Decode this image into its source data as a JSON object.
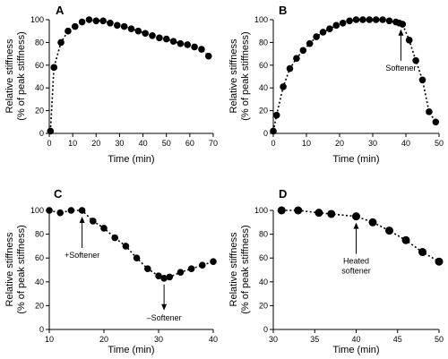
{
  "chart_data": [
    {
      "type": "scatter",
      "panel_label": "A",
      "xlabel": "Time (min)",
      "ylabel_line1": "Relative stiffness",
      "ylabel_line2": "(% of peak stiffness)",
      "xlim": [
        0,
        70
      ],
      "ylim": [
        0,
        100
      ],
      "xticks": [
        0,
        10,
        20,
        30,
        40,
        50,
        60,
        70
      ],
      "yticks": [
        0,
        20,
        40,
        60,
        80,
        100
      ],
      "grid": false,
      "series": [
        {
          "x": [
            0.5,
            2,
            5,
            8,
            11,
            14,
            17,
            20,
            23,
            26,
            29,
            32,
            35,
            38,
            41,
            44,
            47,
            50,
            53,
            56,
            59,
            62,
            65,
            68
          ],
          "y": [
            2,
            58,
            80,
            90,
            94,
            98,
            100,
            99,
            99,
            97,
            95,
            94,
            92,
            90,
            88,
            86,
            84,
            83,
            81,
            79,
            78,
            76,
            74,
            68
          ]
        }
      ],
      "annotations": []
    },
    {
      "type": "scatter",
      "panel_label": "B",
      "xlabel": "Time (min)",
      "ylabel_line1": "Relative stiffness",
      "ylabel_line2": "(% of peak stiffness)",
      "xlim": [
        0,
        50
      ],
      "ylim": [
        0,
        100
      ],
      "xticks": [
        0,
        10,
        20,
        30,
        40,
        50
      ],
      "yticks": [
        0,
        20,
        40,
        60,
        80,
        100
      ],
      "grid": false,
      "series": [
        {
          "x": [
            0,
            1,
            3,
            5,
            7,
            9,
            11,
            13,
            15,
            17,
            19,
            21,
            23,
            25,
            27,
            29,
            31,
            33,
            35,
            37,
            38,
            39,
            41,
            43,
            45,
            47,
            49
          ],
          "y": [
            2,
            16,
            41,
            57,
            66,
            73,
            79,
            85,
            89,
            92,
            95,
            97,
            99,
            100,
            100,
            100,
            100,
            100,
            99,
            98,
            97,
            96,
            82,
            64,
            47,
            19,
            10
          ]
        }
      ],
      "annotations": [
        {
          "text": "Softener",
          "x": 38.5,
          "y": 97,
          "direction": "up"
        }
      ]
    },
    {
      "type": "scatter",
      "panel_label": "C",
      "xlabel": "Time (min)",
      "ylabel_line1": "Relative stiffness",
      "ylabel_line2": "(% of peak stiffness)",
      "xlim": [
        10,
        40
      ],
      "ylim": [
        0,
        100
      ],
      "xticks": [
        10,
        20,
        30,
        40
      ],
      "yticks": [
        0,
        20,
        40,
        60,
        80,
        100
      ],
      "grid": false,
      "series": [
        {
          "x": [
            10,
            12,
            14,
            16,
            18,
            20,
            22,
            24,
            26,
            28,
            30,
            31,
            32,
            34,
            36,
            38,
            40
          ],
          "y": [
            100,
            98,
            100,
            100,
            91,
            85,
            77,
            70,
            60,
            51,
            45,
            43,
            44,
            48,
            51,
            54,
            57
          ]
        }
      ],
      "annotations": [
        {
          "text": "+Softener",
          "x": 16,
          "y": 100,
          "direction": "up"
        },
        {
          "text": "–Softener",
          "x": 31,
          "y": 43,
          "direction": "down"
        }
      ]
    },
    {
      "type": "scatter",
      "panel_label": "D",
      "xlabel": "Time (min)",
      "ylabel_line1": "Relative stiffness",
      "ylabel_line2": "(% of peak stiffness)",
      "xlim": [
        30,
        50
      ],
      "ylim": [
        0,
        100
      ],
      "xticks": [
        30,
        35,
        40,
        45,
        50
      ],
      "yticks": [
        0,
        20,
        40,
        60,
        80,
        100
      ],
      "grid": false,
      "series": [
        {
          "x": [
            31,
            33,
            35.5,
            37,
            40,
            42,
            44,
            46,
            48,
            50
          ],
          "y": [
            100,
            100,
            98,
            97,
            95,
            90,
            83,
            75,
            65,
            57
          ]
        }
      ],
      "annotations": [
        {
          "text_line1": "Heated",
          "text_line2": "softener",
          "x": 40,
          "y": 95,
          "direction": "up"
        }
      ]
    }
  ]
}
